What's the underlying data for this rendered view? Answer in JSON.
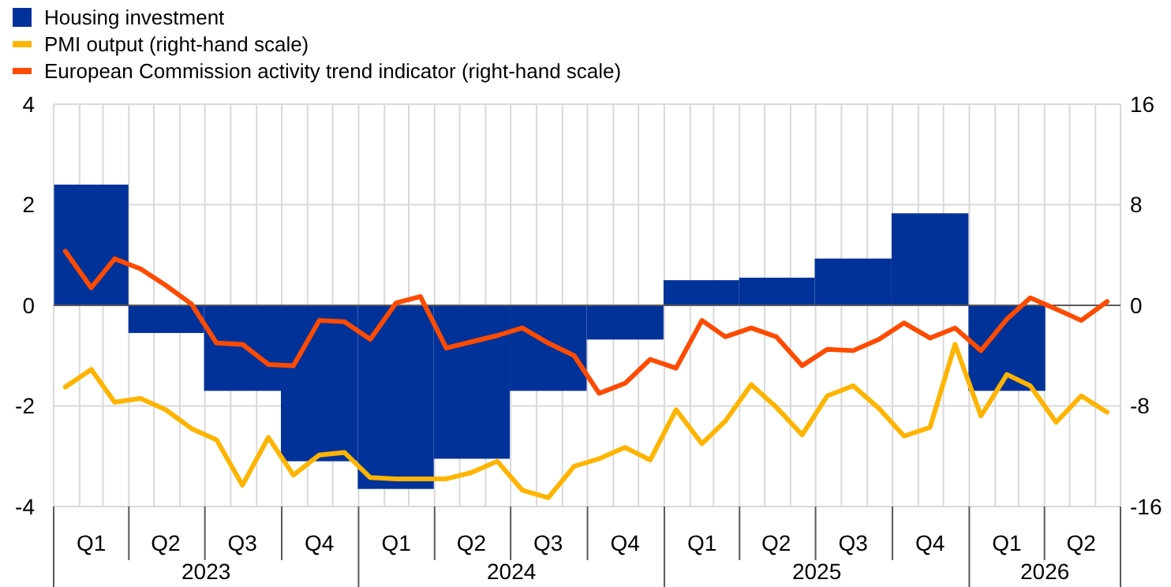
{
  "chart_data": {
    "type": "bar",
    "x": [
      "2023-02-15",
      "2023-05-15",
      "2023-08-15",
      "2023-11-15",
      "2024-02-15",
      "2024-05-15",
      "2024-08-15",
      "2024-11-15",
      "2025-02-15",
      "2025-05-15",
      "2025-08-15",
      "2025-11-15",
      "2026-02-15"
    ],
    "xlim": [
      "2023-01-01",
      "2026-07-01"
    ],
    "xticks": [
      {
        "value": "2023-02-15",
        "label": "Q1"
      },
      {
        "value": "2023-05-15",
        "label": "Q2"
      },
      {
        "value": "2023-08-15",
        "label": "Q3"
      },
      {
        "value": "2023-11-15",
        "label": "Q4"
      },
      {
        "value": "2024-02-15",
        "label": "Q1"
      },
      {
        "value": "2024-05-15",
        "label": "Q2"
      },
      {
        "value": "2024-08-15",
        "label": "Q3"
      },
      {
        "value": "2024-11-15",
        "label": "Q4"
      },
      {
        "value": "2025-02-15",
        "label": "Q1"
      },
      {
        "value": "2025-05-15",
        "label": "Q2"
      },
      {
        "value": "2025-08-15",
        "label": "Q3"
      },
      {
        "value": "2025-11-15",
        "label": "Q4"
      },
      {
        "value": "2026-02-15",
        "label": "Q1"
      },
      {
        "value": "2026-05-15",
        "label": "Q2"
      }
    ],
    "annotations": [
      "2023",
      "2024",
      "2025",
      "2026"
    ],
    "series": [
      {
        "name": "Housing investment",
        "color": "#003299",
        "values": [
          2.4,
          -0.55,
          -1.7,
          -3.1,
          -3.65,
          -3.05,
          -1.7,
          -0.68,
          0.5,
          0.55,
          0.93,
          1.83,
          -1.7
        ]
      },
      {
        "name": "PMI output (right-hand scale)",
        "type": "line",
        "axis": "y2",
        "color": "#ffb400",
        "x": [
          "2023-01-15",
          "2023-02-15",
          "2023-03-15",
          "2023-04-15",
          "2023-05-15",
          "2023-06-15",
          "2023-07-15",
          "2023-08-15",
          "2023-09-15",
          "2023-10-15",
          "2023-11-15",
          "2023-12-15",
          "2024-01-15",
          "2024-02-15",
          "2024-03-15",
          "2024-04-15",
          "2024-05-15",
          "2024-06-15",
          "2024-07-15",
          "2024-08-15",
          "2024-09-15",
          "2024-10-15",
          "2024-11-15",
          "2024-12-15",
          "2025-01-15",
          "2025-02-15",
          "2025-03-15",
          "2025-04-15",
          "2025-05-15",
          "2025-06-15",
          "2025-07-15",
          "2025-08-15",
          "2025-09-15",
          "2025-10-15",
          "2025-11-15",
          "2025-12-15",
          "2026-01-15",
          "2026-02-15",
          "2026-03-15",
          "2026-04-15",
          "2026-05-15",
          "2026-06-15"
        ],
        "values": [
          -6.5,
          -5.1,
          -7.7,
          -7.4,
          -8.3,
          -9.8,
          -10.7,
          -14.3,
          -10.5,
          -13.5,
          -11.9,
          -11.7,
          -13.7,
          -13.8,
          -13.8,
          -13.8,
          -13.3,
          -12.4,
          -14.7,
          -15.3,
          -12.8,
          -12.2,
          -11.3,
          -12.3,
          -8.3,
          -11,
          -9.2,
          -6.3,
          -8.1,
          -10.3,
          -7.2,
          -6.4,
          -8.2,
          -10.4,
          -9.7,
          -3.1,
          -8.8,
          -5.5,
          -6.4,
          -9.3,
          -7.2,
          -8.5
        ]
      },
      {
        "name": "European Commission activity trend indicator (right-hand scale)",
        "type": "line",
        "axis": "y2",
        "color": "#ff4b00",
        "x": [
          "2023-01-15",
          "2023-02-15",
          "2023-03-15",
          "2023-04-15",
          "2023-05-15",
          "2023-06-15",
          "2023-07-15",
          "2023-08-15",
          "2023-09-15",
          "2023-10-15",
          "2023-11-15",
          "2023-12-15",
          "2024-01-15",
          "2024-02-15",
          "2024-03-15",
          "2024-04-15",
          "2024-05-15",
          "2024-06-15",
          "2024-07-15",
          "2024-08-15",
          "2024-09-15",
          "2024-10-15",
          "2024-11-15",
          "2024-12-15",
          "2025-01-15",
          "2025-02-15",
          "2025-03-15",
          "2025-04-15",
          "2025-05-15",
          "2025-06-15",
          "2025-07-15",
          "2025-08-15",
          "2025-09-15",
          "2025-10-15",
          "2025-11-15",
          "2025-12-15",
          "2026-01-15",
          "2026-02-15",
          "2026-03-15",
          "2026-04-15",
          "2026-05-15",
          "2026-06-15"
        ],
        "values": [
          4.3,
          1.4,
          3.7,
          2.9,
          1.6,
          0.1,
          -3,
          -3.1,
          -4.7,
          -4.8,
          -1.2,
          -1.3,
          -2.7,
          0.2,
          0.7,
          -3.4,
          -2.9,
          -2.4,
          -1.8,
          -3,
          -4,
          -7,
          -6.2,
          -4.3,
          -5,
          -1.2,
          -2.5,
          -1.8,
          -2.5,
          -4.8,
          -3.5,
          -3.6,
          -2.7,
          -1.4,
          -2.6,
          -1.8,
          -3.6,
          -1.1,
          0.6,
          -0.3,
          -1.2,
          0.3
        ]
      }
    ],
    "ylim": [
      -4,
      4
    ],
    "yticks": [
      -4,
      -2,
      0,
      2,
      4
    ],
    "y2lim": [
      -16,
      16
    ],
    "y2ticks": [
      -16,
      -8,
      0,
      8,
      16
    ],
    "grid": true,
    "legend": "top left",
    "marker": "none",
    "line_style": "solid"
  }
}
